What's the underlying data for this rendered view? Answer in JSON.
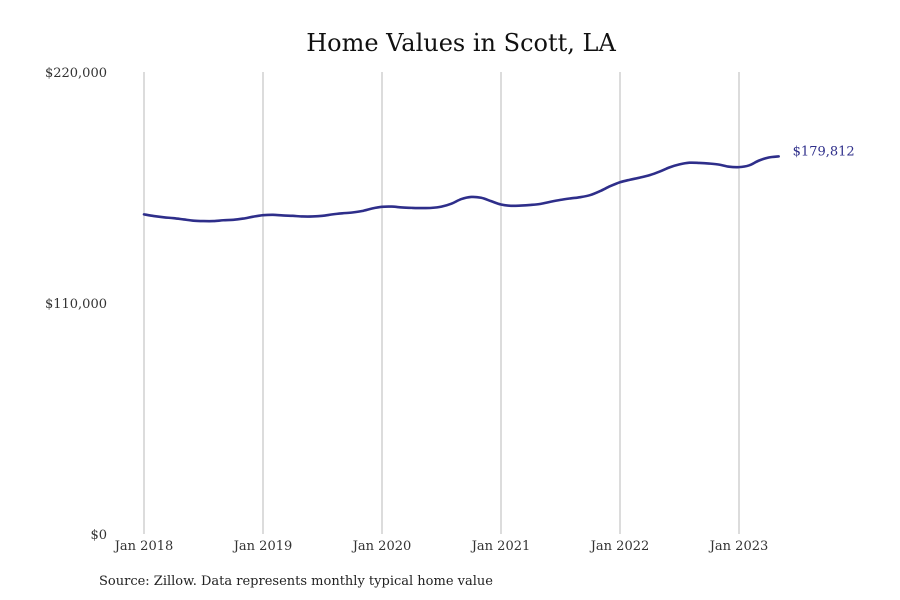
{
  "chart_data": {
    "type": "line",
    "title": "Home Values in Scott, LA",
    "xlabel": "",
    "ylabel": "",
    "x_ticks": [
      "Jan 2018",
      "Jan 2019",
      "Jan 2020",
      "Jan 2021",
      "Jan 2022",
      "Jan 2023"
    ],
    "y_ticks": [
      "$220,000",
      "$110,000",
      "$0"
    ],
    "ylim": [
      0,
      220000
    ],
    "xlim": [
      "2018-01",
      "2023-05"
    ],
    "grid": "vertical",
    "color": "#2e2e8a",
    "end_label": "$179,812",
    "series": [
      {
        "x": [
          "2018-01",
          "2018-02",
          "2018-03",
          "2018-04",
          "2018-05",
          "2018-06",
          "2018-07",
          "2018-08",
          "2018-09",
          "2018-10",
          "2018-11",
          "2018-12",
          "2019-01",
          "2019-02",
          "2019-03",
          "2019-04",
          "2019-05",
          "2019-06",
          "2019-07",
          "2019-08",
          "2019-09",
          "2019-10",
          "2019-11",
          "2019-12",
          "2020-01",
          "2020-02",
          "2020-03",
          "2020-04",
          "2020-05",
          "2020-06",
          "2020-07",
          "2020-08",
          "2020-09",
          "2020-10",
          "2020-11",
          "2020-12",
          "2021-01",
          "2021-02",
          "2021-03",
          "2021-04",
          "2021-05",
          "2021-06",
          "2021-07",
          "2021-08",
          "2021-09",
          "2021-10",
          "2021-11",
          "2021-12",
          "2022-01",
          "2022-02",
          "2022-03",
          "2022-04",
          "2022-05",
          "2022-06",
          "2022-07",
          "2022-08",
          "2022-09",
          "2022-10",
          "2022-11",
          "2022-12",
          "2023-01",
          "2023-02",
          "2023-03",
          "2023-04",
          "2023-05"
        ],
        "values": [
          152200,
          151400,
          150800,
          150400,
          149800,
          149200,
          149000,
          149000,
          149400,
          149600,
          150200,
          151100,
          151800,
          152000,
          151700,
          151500,
          151200,
          151200,
          151500,
          152200,
          152700,
          153100,
          153800,
          155000,
          155800,
          155900,
          155500,
          155300,
          155200,
          155300,
          155900,
          157300,
          159500,
          160500,
          160100,
          158500,
          156900,
          156300,
          156400,
          156700,
          157200,
          158200,
          159100,
          159800,
          160400,
          161400,
          163300,
          165600,
          167500,
          168700,
          169700,
          170900,
          172600,
          174600,
          176000,
          176800,
          176700,
          176400,
          175900,
          174900,
          174700,
          175500,
          177800,
          179300,
          179812
        ]
      }
    ]
  },
  "source": "Source: Zillow. Data represents monthly typical home value"
}
